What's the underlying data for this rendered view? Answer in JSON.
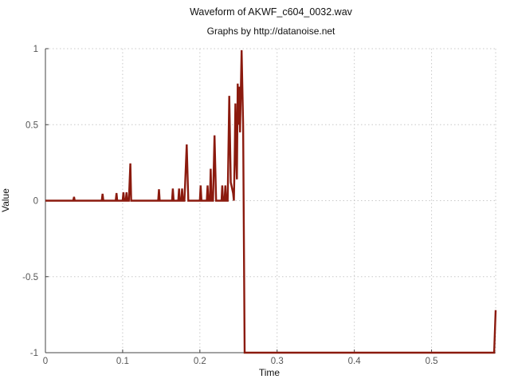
{
  "chart_data": {
    "type": "line",
    "title": "Waveform of AKWF_c604_0032.wav",
    "subtitle": "Graphs by http://datanoise.net",
    "xlabel": "Time",
    "ylabel": "Value",
    "xlim": [
      0,
      0.583
    ],
    "ylim": [
      -1,
      1
    ],
    "x_ticks": [
      0,
      0.1,
      0.2,
      0.3,
      0.4,
      0.5
    ],
    "x_tick_labels": [
      "0",
      "0.1",
      "0.2",
      "0.3",
      "0.4",
      "0.5"
    ],
    "y_ticks": [
      -1,
      -0.5,
      0,
      0.5,
      1
    ],
    "y_tick_labels": [
      "-1",
      "-0.5",
      "0",
      "0.5",
      "1"
    ],
    "grid": true,
    "color": "#8b1a0e",
    "series": [
      {
        "points": [
          [
            0,
            0
          ],
          [
            0.036,
            0
          ],
          [
            0.037,
            0.025
          ],
          [
            0.038,
            0
          ],
          [
            0.073,
            0
          ],
          [
            0.074,
            0.045
          ],
          [
            0.075,
            0
          ],
          [
            0.091,
            0
          ],
          [
            0.092,
            0.05
          ],
          [
            0.093,
            0
          ],
          [
            0.1,
            0
          ],
          [
            0.101,
            0.055
          ],
          [
            0.102,
            0
          ],
          [
            0.104,
            0
          ],
          [
            0.105,
            0.055
          ],
          [
            0.106,
            0
          ],
          [
            0.108,
            0
          ],
          [
            0.11,
            0.245
          ],
          [
            0.111,
            0
          ],
          [
            0.146,
            0
          ],
          [
            0.147,
            0.075
          ],
          [
            0.148,
            0
          ],
          [
            0.164,
            0
          ],
          [
            0.165,
            0.08
          ],
          [
            0.166,
            0
          ],
          [
            0.172,
            0
          ],
          [
            0.173,
            0.08
          ],
          [
            0.174,
            0
          ],
          [
            0.176,
            0
          ],
          [
            0.177,
            0.08
          ],
          [
            0.178,
            0
          ],
          [
            0.18,
            0
          ],
          [
            0.181,
            0.12
          ],
          [
            0.183,
            0.37
          ],
          [
            0.185,
            0
          ],
          [
            0.2,
            0
          ],
          [
            0.201,
            0.1
          ],
          [
            0.202,
            0
          ],
          [
            0.209,
            0
          ],
          [
            0.21,
            0.1
          ],
          [
            0.211,
            0
          ],
          [
            0.213,
            0
          ],
          [
            0.214,
            0.21
          ],
          [
            0.215,
            0
          ],
          [
            0.217,
            0
          ],
          [
            0.219,
            0.43
          ],
          [
            0.221,
            0
          ],
          [
            0.228,
            0
          ],
          [
            0.229,
            0.1
          ],
          [
            0.23,
            0
          ],
          [
            0.232,
            0
          ],
          [
            0.233,
            0.1
          ],
          [
            0.234,
            0
          ],
          [
            0.236,
            0
          ],
          [
            0.238,
            0.69
          ],
          [
            0.24,
            0.12
          ],
          [
            0.243,
            0.05
          ],
          [
            0.244,
            0
          ],
          [
            0.245,
            0.25
          ],
          [
            0.246,
            0.64
          ],
          [
            0.247,
            0.3
          ],
          [
            0.248,
            0.14
          ],
          [
            0.249,
            0.77
          ],
          [
            0.25,
            0.5
          ],
          [
            0.251,
            0.75
          ],
          [
            0.252,
            0.45
          ],
          [
            0.254,
            0.99
          ],
          [
            0.256,
            0.5
          ],
          [
            0.258,
            -1
          ],
          [
            0.581,
            -1
          ],
          [
            0.583,
            -0.72
          ]
        ]
      }
    ]
  }
}
